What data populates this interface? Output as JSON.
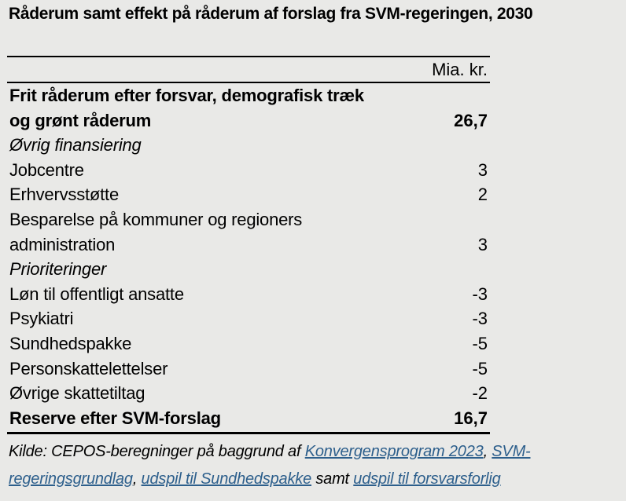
{
  "title": "Råderum samt effekt på råderum af forslag fra SVM-regeringen, 2030",
  "table": {
    "unit_header": "Mia. kr.",
    "rows": [
      {
        "label": "Frit råderum efter forsvar, demografisk træk og grønt råderum",
        "value": "26,7",
        "style": "bold"
      },
      {
        "label": "Øvrig finansiering",
        "value": "",
        "style": "italic"
      },
      {
        "label": "Jobcentre",
        "value": "3",
        "style": "normal"
      },
      {
        "label": "Erhvervsstøtte",
        "value": "2",
        "style": "normal"
      },
      {
        "label": "Besparelse på kommuner og regioners administration",
        "value": "3",
        "style": "normal"
      },
      {
        "label": "Prioriteringer",
        "value": "",
        "style": "italic"
      },
      {
        "label": "Løn til offentligt ansatte",
        "value": "-3",
        "style": "normal"
      },
      {
        "label": "Psykiatri",
        "value": "-3",
        "style": "normal"
      },
      {
        "label": "Sundhedspakke",
        "value": "-5",
        "style": "normal"
      },
      {
        "label": "Personskattelettelser",
        "value": "-5",
        "style": "normal"
      },
      {
        "label": "Øvrige skattetiltag",
        "value": "-2",
        "style": "normal"
      },
      {
        "label": "Reserve efter SVM-forslag",
        "value": "16,7",
        "style": "bold"
      }
    ]
  },
  "source": {
    "segments": [
      {
        "text": "Kilde: CEPOS-beregninger på baggrund af ",
        "link": false
      },
      {
        "text": "Konvergensprogram 2023",
        "link": true
      },
      {
        "text": ", ",
        "link": false
      },
      {
        "text": "SVM-regeringsgrundlag",
        "link": true
      },
      {
        "text": ", ",
        "link": false
      },
      {
        "text": "udspil til Sundhedspakke",
        "link": true
      },
      {
        "text": " samt ",
        "link": false
      },
      {
        "text": "udspil til forsvarsforlig",
        "link": true
      }
    ]
  },
  "colors": {
    "background": "#e9e9e7",
    "text": "#000000",
    "link": "#2d5f8c"
  },
  "chart_data": {
    "type": "table",
    "title": "Råderum samt effekt på råderum af forslag fra SVM-regeringen, 2030",
    "columns": [
      "",
      "Mia. kr."
    ],
    "rows": [
      [
        "Frit råderum efter forsvar, demografisk træk og grønt råderum",
        26.7
      ],
      [
        "Øvrig finansiering",
        null
      ],
      [
        "Jobcentre",
        3
      ],
      [
        "Erhvervsstøtte",
        2
      ],
      [
        "Besparelse på kommuner og regioners administration",
        3
      ],
      [
        "Prioriteringer",
        null
      ],
      [
        "Løn til offentligt ansatte",
        -3
      ],
      [
        "Psykiatri",
        -3
      ],
      [
        "Sundhedspakke",
        -5
      ],
      [
        "Personskattelettelser",
        -5
      ],
      [
        "Øvrige skattetiltag",
        -2
      ],
      [
        "Reserve efter SVM-forslag",
        16.7
      ]
    ]
  }
}
